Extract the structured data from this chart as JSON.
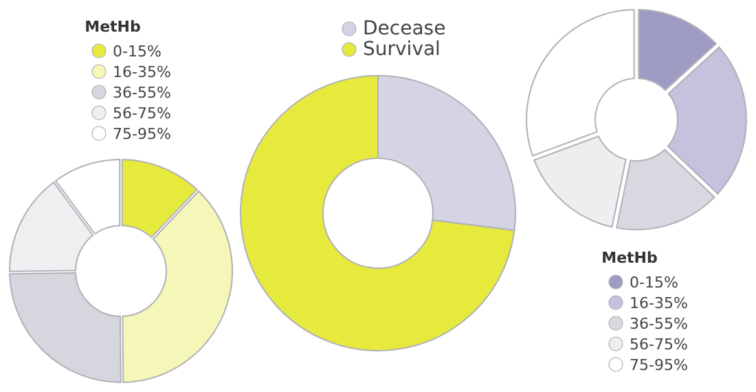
{
  "chart_data": [
    {
      "type": "donut",
      "legend_title": "MetHb",
      "legend": "top",
      "categories": [
        "0-15%",
        "16-35%",
        "36-55%",
        "56-75%",
        "75-95%"
      ],
      "values": [
        12,
        38,
        25,
        15,
        10
      ],
      "colors": [
        "#e6ea3c",
        "#f5f7b8",
        "#d6d6de",
        "#eeeff0",
        "#ffffff"
      ]
    },
    {
      "type": "donut",
      "legend": "top",
      "categories": [
        "Decease",
        "Survival"
      ],
      "values": [
        27,
        73
      ],
      "colors": [
        "#d4d4e4",
        "#e6ea3c"
      ]
    },
    {
      "type": "donut",
      "legend_title": "MetHb",
      "legend": "bottom",
      "categories": [
        "0-15%",
        "16-35%",
        "36-55%",
        "56-75%",
        "75-95%"
      ],
      "values": [
        13,
        24,
        16,
        16,
        31
      ],
      "colors": [
        "#9f9cc4",
        "#c4c2dc",
        "#d8d8e0",
        "#eeeef0",
        "#ffffff"
      ]
    }
  ]
}
